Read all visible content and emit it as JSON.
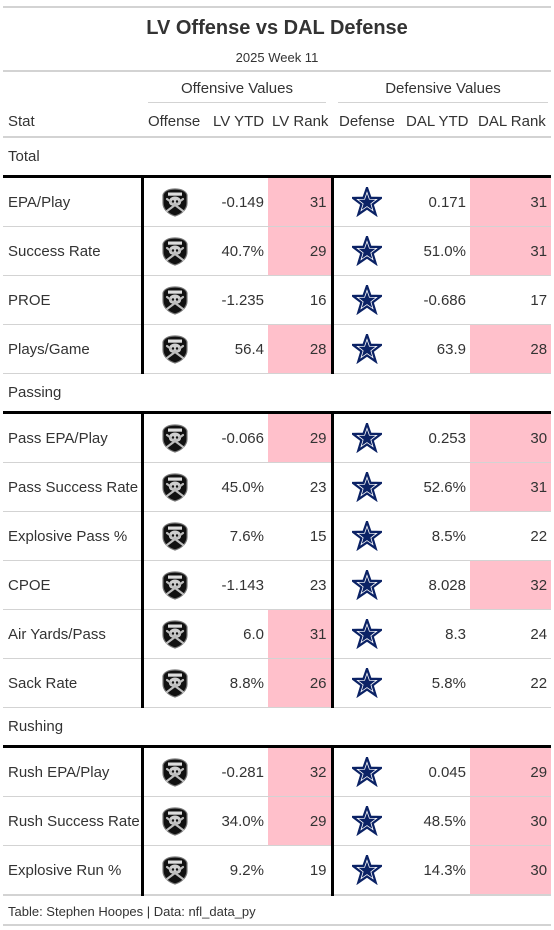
{
  "title": "LV Offense vs DAL Defense",
  "subtitle": "2025 Week 11",
  "spanners": {
    "offense": "Offensive Values",
    "defense": "Defensive Values"
  },
  "columns": [
    "Stat",
    "Offense",
    "LV YTD",
    "LV Rank",
    "Defense",
    "DAL YTD",
    "DAL Rank"
  ],
  "source_note": "Table: Stephen Hoopes | Data: nfl_data_py",
  "colors": {
    "highlight": "#ffc0cb",
    "rule": "#d3d3d3",
    "divider": "#000000",
    "star": "#0b2265"
  },
  "icons": {
    "offense": "raiders-logo-icon",
    "defense": "cowboys-star-icon"
  },
  "chart_data": {
    "type": "table",
    "title": "LV Offense vs DAL Defense",
    "subtitle": "2025 Week 11",
    "columns": [
      "Stat",
      "Offense",
      "LV YTD",
      "LV Rank",
      "Defense",
      "DAL YTD",
      "DAL Rank"
    ],
    "groups": [
      {
        "name": "Total",
        "rows": [
          {
            "stat": "EPA/Play",
            "lv_ytd": "-0.149",
            "lv_rank": 31,
            "lv_hl": true,
            "dal_ytd": "0.171",
            "dal_rank": 31,
            "dal_hl": true
          },
          {
            "stat": "Success Rate",
            "lv_ytd": "40.7%",
            "lv_rank": 29,
            "lv_hl": true,
            "dal_ytd": "51.0%",
            "dal_rank": 31,
            "dal_hl": true
          },
          {
            "stat": "PROE",
            "lv_ytd": "-1.235",
            "lv_rank": 16,
            "lv_hl": false,
            "dal_ytd": "-0.686",
            "dal_rank": 17,
            "dal_hl": false
          },
          {
            "stat": "Plays/Game",
            "lv_ytd": "56.4",
            "lv_rank": 28,
            "lv_hl": true,
            "dal_ytd": "63.9",
            "dal_rank": 28,
            "dal_hl": true
          }
        ]
      },
      {
        "name": "Passing",
        "rows": [
          {
            "stat": "Pass EPA/Play",
            "lv_ytd": "-0.066",
            "lv_rank": 29,
            "lv_hl": true,
            "dal_ytd": "0.253",
            "dal_rank": 30,
            "dal_hl": true
          },
          {
            "stat": "Pass Success Rate",
            "lv_ytd": "45.0%",
            "lv_rank": 23,
            "lv_hl": false,
            "dal_ytd": "52.6%",
            "dal_rank": 31,
            "dal_hl": true
          },
          {
            "stat": "Explosive Pass %",
            "lv_ytd": "7.6%",
            "lv_rank": 15,
            "lv_hl": false,
            "dal_ytd": "8.5%",
            "dal_rank": 22,
            "dal_hl": false
          },
          {
            "stat": "CPOE",
            "lv_ytd": "-1.143",
            "lv_rank": 23,
            "lv_hl": false,
            "dal_ytd": "8.028",
            "dal_rank": 32,
            "dal_hl": true
          },
          {
            "stat": "Air Yards/Pass",
            "lv_ytd": "6.0",
            "lv_rank": 31,
            "lv_hl": true,
            "dal_ytd": "8.3",
            "dal_rank": 24,
            "dal_hl": false
          },
          {
            "stat": "Sack Rate",
            "lv_ytd": "8.8%",
            "lv_rank": 26,
            "lv_hl": true,
            "dal_ytd": "5.8%",
            "dal_rank": 22,
            "dal_hl": false
          }
        ]
      },
      {
        "name": "Rushing",
        "rows": [
          {
            "stat": "Rush EPA/Play",
            "lv_ytd": "-0.281",
            "lv_rank": 32,
            "lv_hl": true,
            "dal_ytd": "0.045",
            "dal_rank": 29,
            "dal_hl": true
          },
          {
            "stat": "Rush Success Rate",
            "lv_ytd": "34.0%",
            "lv_rank": 29,
            "lv_hl": true,
            "dal_ytd": "48.5%",
            "dal_rank": 30,
            "dal_hl": true
          },
          {
            "stat": "Explosive Run %",
            "lv_ytd": "9.2%",
            "lv_rank": 19,
            "lv_hl": false,
            "dal_ytd": "14.3%",
            "dal_rank": 30,
            "dal_hl": true
          }
        ]
      }
    ]
  }
}
